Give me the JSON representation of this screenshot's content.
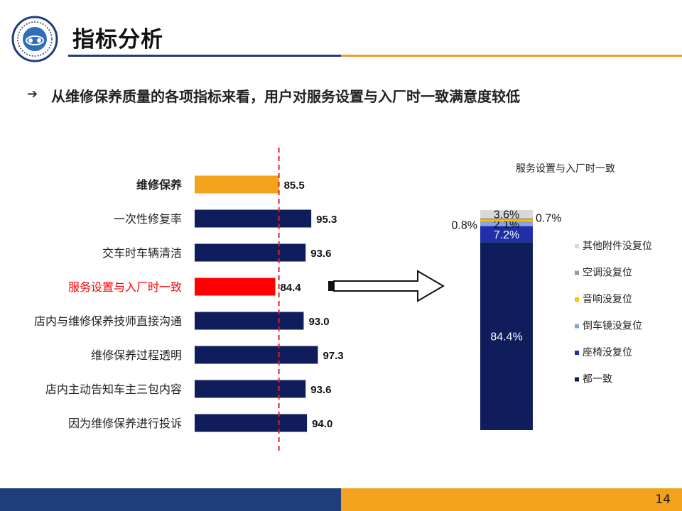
{
  "title": "指标分析",
  "subtitle": "从维修保养质量的各项指标来看，用户对服务设置与入厂时一致满意度较低",
  "page_number": "14",
  "colors": {
    "navy": "#0f1d5c",
    "orange": "#f3a21d",
    "red": "#ff0000",
    "highlight_text": "#ff0000",
    "header_blue": "#1f3d7a"
  },
  "icons": {
    "bullet": "arrow-right-icon",
    "callout": "hollow-arrow-icon",
    "logo": "emblem-logo"
  },
  "chart_data": [
    {
      "type": "bar",
      "orientation": "horizontal",
      "categories": [
        "维修保养",
        "一次性修复率",
        "交车时车辆清洁",
        "服务设置与入厂时一致",
        "店内与维修保养技师直接沟通",
        "维修保养过程透明",
        "店内主动告知车主三包内容",
        "因为维修保养进行投诉"
      ],
      "values": [
        85.5,
        95.3,
        93.6,
        84.4,
        93.0,
        97.3,
        93.6,
        94.0
      ],
      "value_labels": [
        "85.5",
        "95.3",
        "93.6",
        "84.4",
        "93.0",
        "97.3",
        "93.6",
        "94.0"
      ],
      "bar_colors": [
        "#f3a21d",
        "#0f1d5c",
        "#0f1d5c",
        "#ff0000",
        "#0f1d5c",
        "#0f1d5c",
        "#0f1d5c",
        "#0f1d5c"
      ],
      "xlim": [
        60,
        100
      ],
      "reference_line": 85.5,
      "grid": false
    },
    {
      "type": "bar",
      "stacked": true,
      "title": "服务设置与入厂时一致",
      "series": [
        {
          "name": "都一致",
          "value": 84.4,
          "label": "84.4%",
          "color": "#0f1d5c"
        },
        {
          "name": "座椅没复位",
          "value": 7.2,
          "label": "7.2%",
          "color": "#1e2fa8"
        },
        {
          "name": "倒车镜没复位",
          "value": 2.1,
          "label": "2.1%",
          "color": "#8ca0e6"
        },
        {
          "name": "音响没复位",
          "value": 0.8,
          "label": "0.8%",
          "color": "#ffc000"
        },
        {
          "name": "空调没复位",
          "value": 0.7,
          "label": "0.7%",
          "color": "#9a9a9a"
        },
        {
          "name": "其他附件没复位",
          "value": 3.6,
          "label": "3.6%",
          "color": "#d9d9d9"
        }
      ],
      "legend_order": [
        "其他附件没复位",
        "空调没复位",
        "音响没复位",
        "倒车镜没复位",
        "座椅没复位",
        "都一致"
      ],
      "legend_position": "right"
    }
  ]
}
